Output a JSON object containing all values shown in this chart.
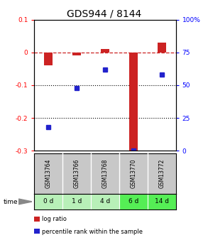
{
  "title": "GDS944 / 8144",
  "samples": [
    "GSM13764",
    "GSM13766",
    "GSM13768",
    "GSM13770",
    "GSM13772"
  ],
  "time_labels": [
    "0 d",
    "1 d",
    "4 d",
    "6 d",
    "14 d"
  ],
  "log_ratio": [
    -0.04,
    -0.01,
    0.01,
    -0.3,
    0.03
  ],
  "percentile_rank": [
    18,
    48,
    62,
    0,
    58
  ],
  "ylim_left": [
    -0.3,
    0.1
  ],
  "ylim_right": [
    0,
    100
  ],
  "bar_color": "#cc2222",
  "dot_color": "#2222cc",
  "bg_color": "#ffffff",
  "plot_bg": "#ffffff",
  "dashed_color": "#cc2222",
  "sample_bg": "#c8c8c8",
  "time_bg_colors": [
    "#b8f0b8",
    "#b8f0b8",
    "#b8f0b8",
    "#55ee55",
    "#55ee55"
  ],
  "title_fontsize": 10,
  "tick_fontsize": 6.5,
  "label_fontsize": 6.5
}
